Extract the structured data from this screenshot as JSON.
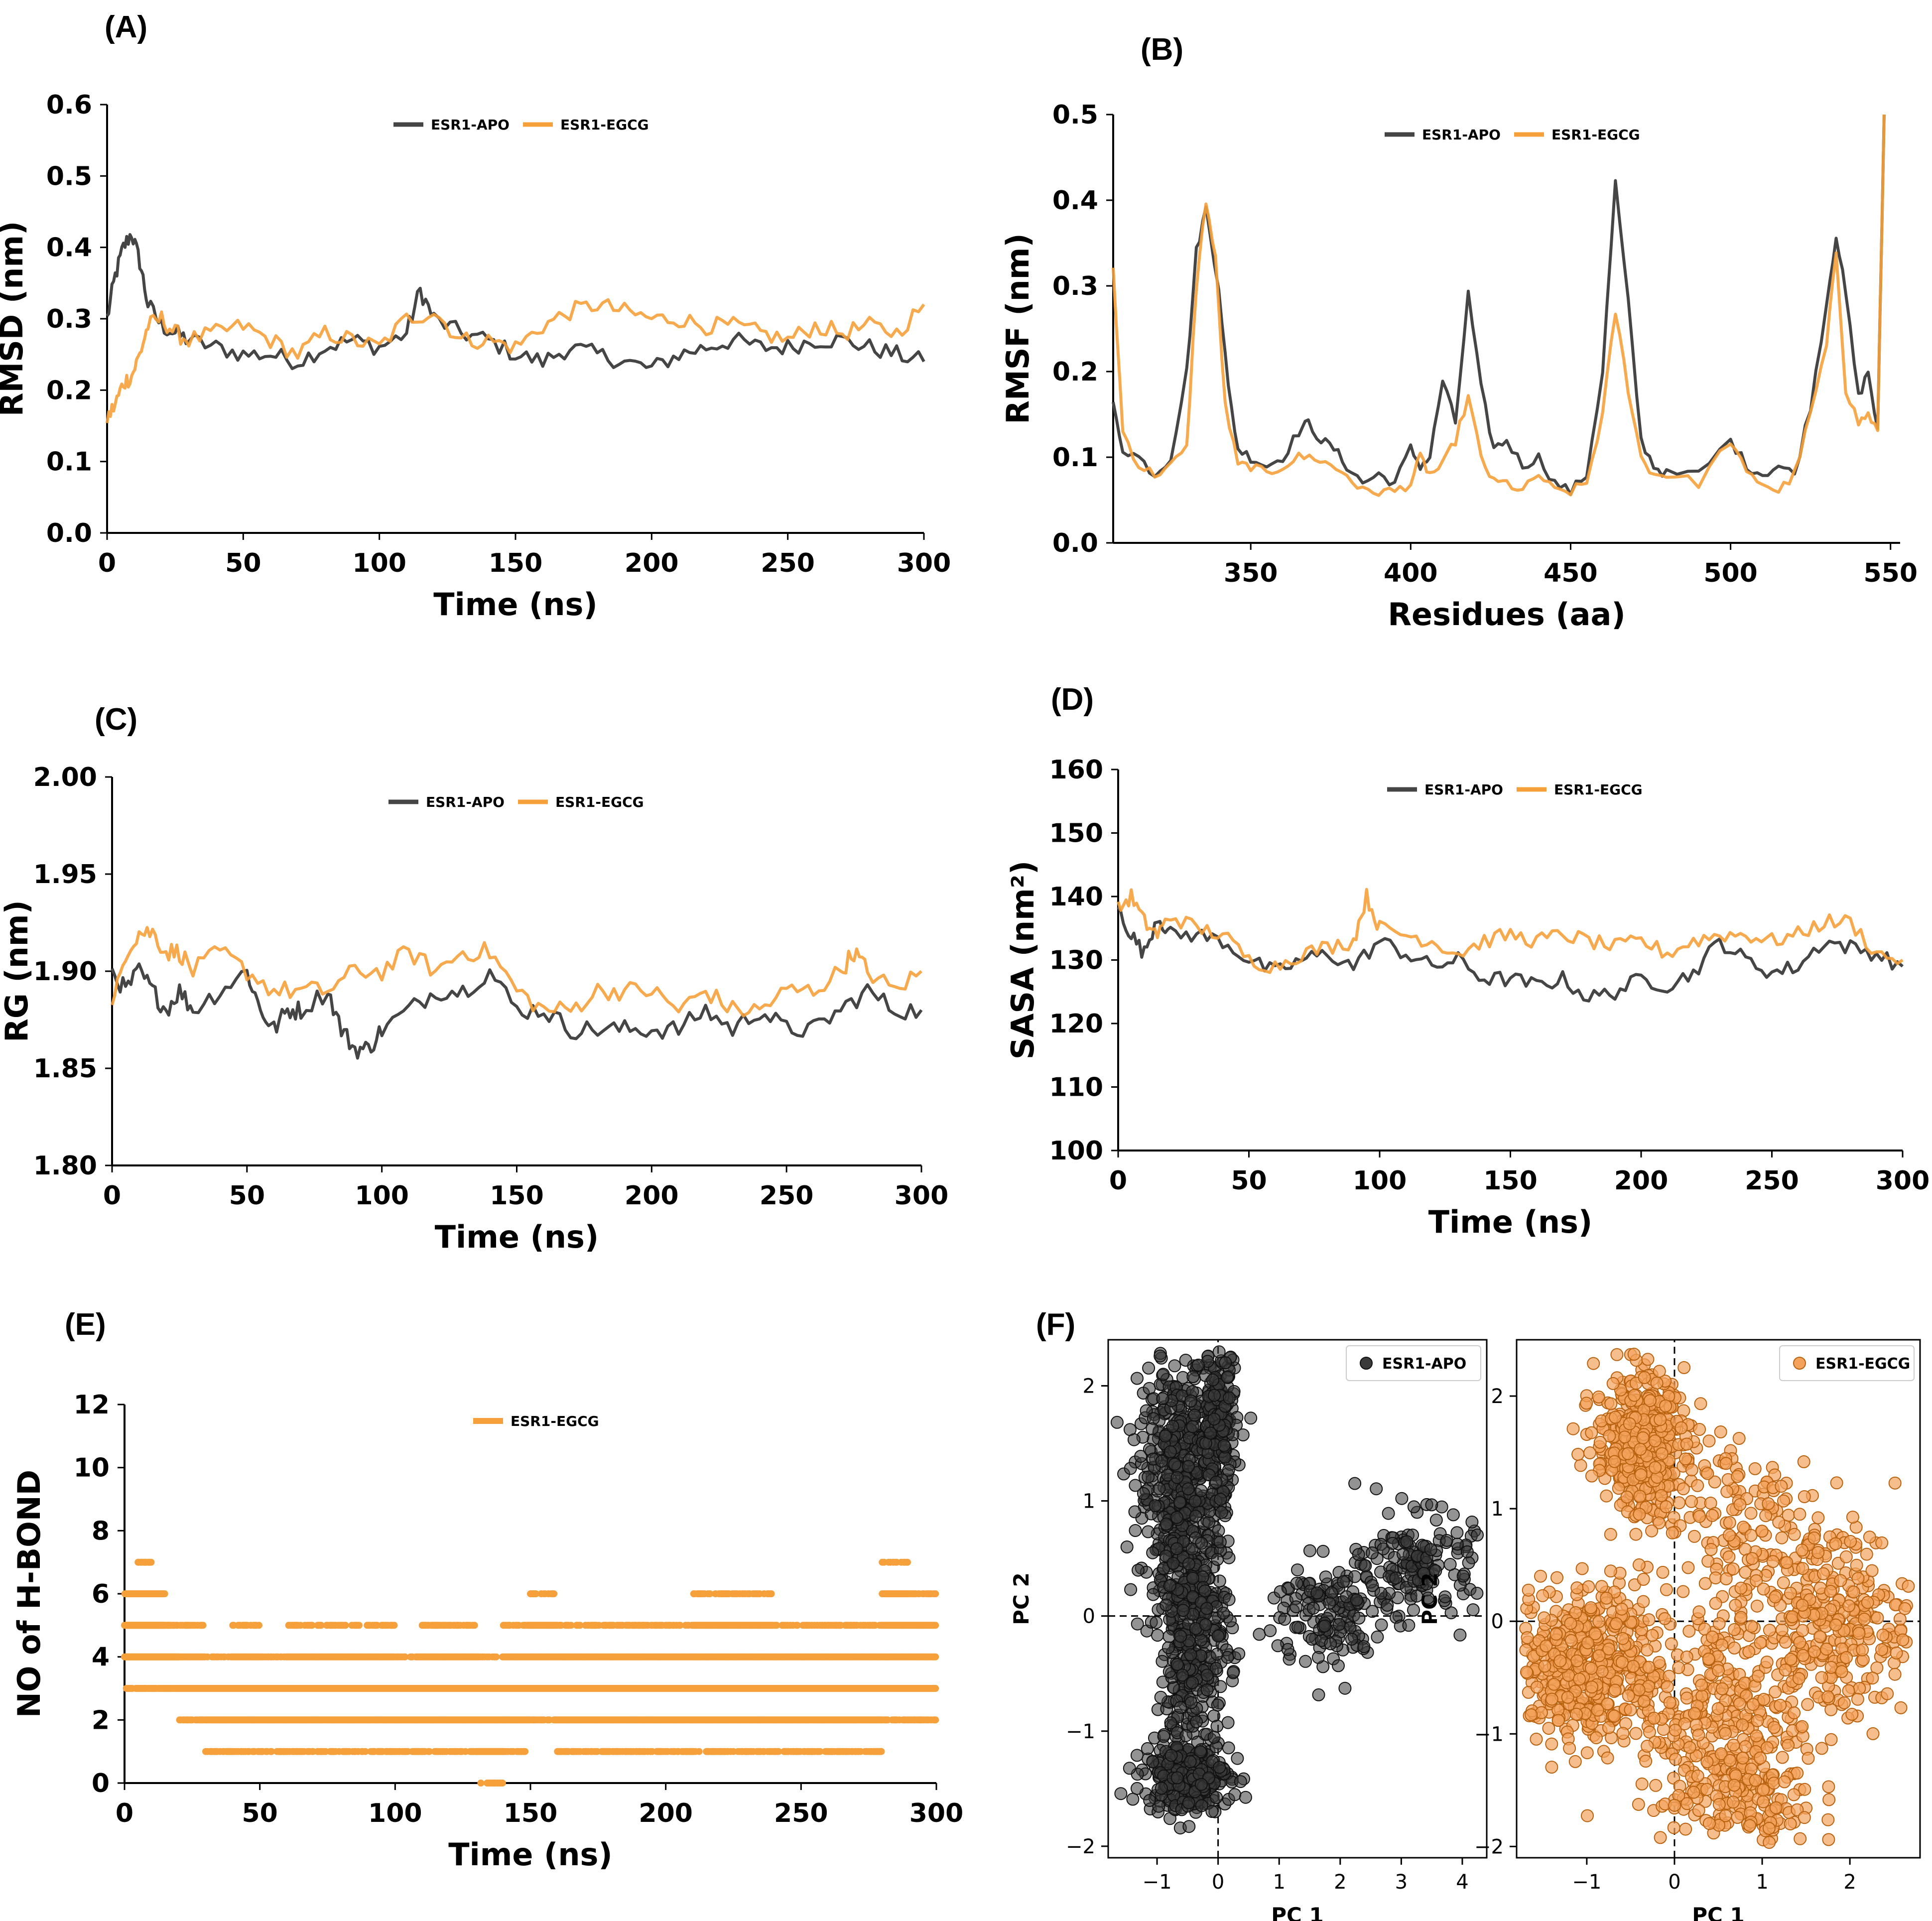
{
  "colors": {
    "apo": "#454545",
    "egcg": "#f5a03a",
    "egcg_dark": "#b8620f",
    "scatter_apo": "#3a3a3a",
    "scatter_egcg": "#f4a35c"
  },
  "chart_data": [
    {
      "id": "A",
      "panel_label": "(A)",
      "type": "line",
      "xlabel": "Time (ns)",
      "ylabel": "RMSD (nm)",
      "xlim": [
        0,
        300
      ],
      "ylim": [
        0.0,
        0.6
      ],
      "xticks": [
        "0",
        "50",
        "100",
        "150",
        "200",
        "250",
        "300"
      ],
      "yticks": [
        "0.0",
        "0.1",
        "0.2",
        "0.3",
        "0.4",
        "0.5",
        "0.6"
      ],
      "legend": "top-center",
      "series": [
        {
          "name": "ESR1-APO",
          "x": [
            0,
            3,
            6,
            9,
            12,
            15,
            20,
            25,
            30,
            40,
            50,
            60,
            70,
            80,
            90,
            100,
            110,
            115,
            120,
            130,
            140,
            150,
            160,
            170,
            180,
            190,
            200,
            210,
            220,
            230,
            240,
            250,
            260,
            270,
            280,
            290,
            300
          ],
          "y": [
            0.3,
            0.36,
            0.4,
            0.42,
            0.38,
            0.32,
            0.29,
            0.28,
            0.27,
            0.26,
            0.25,
            0.25,
            0.24,
            0.26,
            0.27,
            0.26,
            0.28,
            0.34,
            0.3,
            0.28,
            0.27,
            0.25,
            0.24,
            0.26,
            0.25,
            0.24,
            0.23,
            0.25,
            0.26,
            0.27,
            0.26,
            0.26,
            0.27,
            0.27,
            0.26,
            0.25,
            0.24
          ]
        },
        {
          "name": "ESR1-EGCG",
          "x": [
            0,
            3,
            6,
            9,
            12,
            15,
            20,
            25,
            30,
            40,
            50,
            60,
            70,
            80,
            90,
            100,
            110,
            120,
            130,
            140,
            150,
            160,
            170,
            180,
            190,
            200,
            210,
            220,
            230,
            240,
            250,
            260,
            270,
            280,
            290,
            300
          ],
          "y": [
            0.16,
            0.18,
            0.21,
            0.22,
            0.25,
            0.29,
            0.3,
            0.28,
            0.27,
            0.28,
            0.29,
            0.27,
            0.25,
            0.28,
            0.27,
            0.26,
            0.3,
            0.31,
            0.27,
            0.27,
            0.26,
            0.29,
            0.31,
            0.32,
            0.31,
            0.3,
            0.3,
            0.29,
            0.29,
            0.28,
            0.27,
            0.29,
            0.28,
            0.29,
            0.28,
            0.32
          ]
        }
      ]
    },
    {
      "id": "B",
      "panel_label": "(B)",
      "type": "line",
      "xlabel": "Residues (aa)",
      "ylabel": "RMSF (nm)",
      "xlim": [
        307,
        553
      ],
      "ylim": [
        0.0,
        0.5
      ],
      "xticks": [
        "350",
        "400",
        "450",
        "500",
        "550"
      ],
      "yticks": [
        "0.0",
        "0.1",
        "0.2",
        "0.3",
        "0.4",
        "0.5"
      ],
      "legend": "top-center",
      "series": [
        {
          "name": "ESR1-APO",
          "x": [
            307,
            310,
            315,
            320,
            325,
            330,
            333,
            336,
            340,
            343,
            346,
            350,
            355,
            360,
            365,
            368,
            372,
            376,
            380,
            385,
            390,
            395,
            400,
            403,
            406,
            410,
            414,
            418,
            422,
            426,
            430,
            435,
            440,
            445,
            450,
            455,
            460,
            464,
            468,
            472,
            476,
            480,
            490,
            500,
            505,
            510,
            515,
            520,
            525,
            530,
            533,
            536,
            540,
            543,
            546,
            548
          ],
          "y": [
            0.16,
            0.11,
            0.1,
            0.08,
            0.1,
            0.2,
            0.34,
            0.39,
            0.3,
            0.18,
            0.11,
            0.1,
            0.09,
            0.1,
            0.13,
            0.14,
            0.12,
            0.11,
            0.09,
            0.07,
            0.08,
            0.07,
            0.11,
            0.09,
            0.1,
            0.19,
            0.14,
            0.29,
            0.18,
            0.11,
            0.12,
            0.09,
            0.1,
            0.07,
            0.06,
            0.08,
            0.2,
            0.42,
            0.28,
            0.12,
            0.09,
            0.08,
            0.08,
            0.12,
            0.09,
            0.08,
            0.09,
            0.08,
            0.16,
            0.28,
            0.36,
            0.29,
            0.17,
            0.2,
            0.13,
            0.5
          ]
        },
        {
          "name": "ESR1-EGCG",
          "x": [
            307,
            310,
            315,
            320,
            325,
            330,
            333,
            336,
            339,
            342,
            346,
            350,
            355,
            360,
            365,
            370,
            375,
            380,
            385,
            390,
            395,
            400,
            403,
            406,
            410,
            414,
            418,
            422,
            426,
            430,
            435,
            440,
            445,
            450,
            455,
            460,
            464,
            468,
            472,
            476,
            480,
            490,
            500,
            505,
            510,
            515,
            520,
            525,
            530,
            533,
            536,
            540,
            543,
            546,
            548
          ],
          "y": [
            0.32,
            0.13,
            0.09,
            0.08,
            0.09,
            0.11,
            0.3,
            0.4,
            0.33,
            0.16,
            0.09,
            0.09,
            0.08,
            0.09,
            0.1,
            0.1,
            0.09,
            0.08,
            0.06,
            0.06,
            0.06,
            0.07,
            0.1,
            0.08,
            0.09,
            0.12,
            0.17,
            0.1,
            0.07,
            0.07,
            0.06,
            0.08,
            0.06,
            0.06,
            0.07,
            0.15,
            0.27,
            0.18,
            0.1,
            0.08,
            0.08,
            0.07,
            0.12,
            0.08,
            0.07,
            0.06,
            0.08,
            0.15,
            0.23,
            0.34,
            0.18,
            0.14,
            0.15,
            0.13,
            0.5
          ]
        }
      ]
    },
    {
      "id": "C",
      "panel_label": "(C)",
      "type": "line",
      "xlabel": "Time (ns)",
      "ylabel": "RG (nm)",
      "xlim": [
        0,
        300
      ],
      "ylim": [
        1.8,
        2.0
      ],
      "xticks": [
        "0",
        "50",
        "100",
        "150",
        "200",
        "250",
        "300"
      ],
      "yticks": [
        "1.80",
        "1.85",
        "1.90",
        "1.95",
        "2.00"
      ],
      "legend": "top-center",
      "series": [
        {
          "name": "ESR1-APO",
          "x": [
            0,
            5,
            10,
            15,
            20,
            25,
            30,
            40,
            50,
            55,
            60,
            65,
            70,
            80,
            85,
            90,
            95,
            100,
            110,
            120,
            130,
            140,
            150,
            160,
            170,
            180,
            190,
            200,
            210,
            220,
            230,
            240,
            250,
            260,
            270,
            280,
            290,
            300
          ],
          "y": [
            1.9,
            1.89,
            1.9,
            1.89,
            1.88,
            1.89,
            1.88,
            1.89,
            1.9,
            1.88,
            1.87,
            1.88,
            1.88,
            1.89,
            1.87,
            1.86,
            1.86,
            1.87,
            1.88,
            1.89,
            1.89,
            1.9,
            1.88,
            1.88,
            1.87,
            1.87,
            1.87,
            1.87,
            1.87,
            1.88,
            1.87,
            1.88,
            1.87,
            1.87,
            1.88,
            1.89,
            1.88,
            1.88
          ]
        },
        {
          "name": "ESR1-EGCG",
          "x": [
            0,
            5,
            10,
            15,
            20,
            25,
            30,
            40,
            50,
            60,
            70,
            80,
            90,
            100,
            110,
            120,
            130,
            140,
            150,
            160,
            170,
            180,
            190,
            200,
            210,
            220,
            230,
            240,
            250,
            260,
            270,
            275,
            280,
            290,
            300
          ],
          "y": [
            1.88,
            1.91,
            1.92,
            1.92,
            1.91,
            1.91,
            1.9,
            1.91,
            1.9,
            1.89,
            1.89,
            1.89,
            1.9,
            1.9,
            1.91,
            1.9,
            1.91,
            1.91,
            1.89,
            1.88,
            1.88,
            1.89,
            1.89,
            1.89,
            1.88,
            1.89,
            1.88,
            1.88,
            1.89,
            1.89,
            1.9,
            1.91,
            1.9,
            1.89,
            1.9
          ]
        }
      ]
    },
    {
      "id": "D",
      "panel_label": "(D)",
      "type": "line",
      "xlabel": "Time (ns)",
      "ylabel": "SASA (nm²)",
      "xlim": [
        0,
        300
      ],
      "ylim": [
        100,
        160
      ],
      "xticks": [
        "0",
        "50",
        "100",
        "150",
        "200",
        "250",
        "300"
      ],
      "yticks": [
        "100",
        "110",
        "120",
        "130",
        "140",
        "150",
        "160"
      ],
      "legend": "top-center",
      "series": [
        {
          "name": "ESR1-APO",
          "x": [
            0,
            5,
            10,
            15,
            20,
            30,
            40,
            50,
            60,
            70,
            80,
            90,
            100,
            110,
            120,
            130,
            140,
            150,
            160,
            170,
            180,
            190,
            200,
            210,
            220,
            230,
            240,
            250,
            260,
            270,
            280,
            290,
            300
          ],
          "y": [
            138,
            134,
            131,
            137,
            134,
            134,
            133,
            130,
            128,
            130,
            131,
            129,
            133,
            131,
            129,
            130,
            127,
            127,
            126,
            127,
            124,
            125,
            127,
            126,
            128,
            133,
            130,
            128,
            129,
            133,
            132,
            131,
            129
          ]
        },
        {
          "name": "ESR1-EGCG",
          "x": [
            0,
            5,
            10,
            15,
            20,
            30,
            40,
            50,
            60,
            70,
            80,
            90,
            95,
            100,
            110,
            120,
            130,
            140,
            150,
            160,
            170,
            180,
            190,
            200,
            210,
            220,
            230,
            240,
            250,
            260,
            270,
            280,
            290,
            300
          ],
          "y": [
            138,
            140,
            136,
            134,
            137,
            135,
            134,
            130,
            129,
            131,
            132,
            133,
            140,
            135,
            134,
            133,
            131,
            133,
            134,
            133,
            134,
            133,
            132,
            133,
            131,
            133,
            134,
            134,
            133,
            134,
            136,
            136,
            131,
            130
          ]
        }
      ]
    },
    {
      "id": "E",
      "panel_label": "(E)",
      "type": "scatter",
      "xlabel": "Time (ns)",
      "ylabel": "NO of H-BOND",
      "xlim": [
        0,
        300
      ],
      "ylim": [
        0,
        12
      ],
      "xticks": [
        "0",
        "50",
        "100",
        "150",
        "200",
        "250",
        "300"
      ],
      "yticks": [
        "0",
        "2",
        "4",
        "6",
        "8",
        "10",
        "12"
      ],
      "legend": "top-center",
      "series": [
        {
          "name": "ESR1-EGCG",
          "note_range": "values fluctuate between min and max over time",
          "x": [
            0,
            5,
            10,
            15,
            20,
            30,
            40,
            50,
            60,
            70,
            80,
            90,
            100,
            110,
            120,
            130,
            140,
            150,
            160,
            170,
            180,
            190,
            200,
            210,
            220,
            230,
            240,
            250,
            260,
            270,
            280,
            290,
            300
          ],
          "min": [
            3,
            3,
            3,
            3,
            2,
            1,
            1,
            1,
            1,
            1,
            1,
            1,
            1,
            1,
            1,
            0,
            1,
            2,
            1,
            1,
            1,
            1,
            1,
            1,
            1,
            1,
            1,
            1,
            1,
            1,
            2,
            2,
            2
          ],
          "max": [
            6,
            7,
            6,
            5,
            5,
            4,
            5,
            4,
            5,
            5,
            5,
            5,
            4,
            5,
            5,
            4,
            5,
            6,
            5,
            5,
            5,
            5,
            5,
            6,
            6,
            6,
            5,
            5,
            5,
            5,
            7,
            6,
            5
          ]
        }
      ]
    },
    {
      "id": "F1",
      "panel_label": "(F)",
      "type": "scatter",
      "xlabel": "PC 1",
      "ylabel": "PC 2",
      "xlim": [
        -1.8,
        4.4
      ],
      "ylim": [
        -2.1,
        2.4
      ],
      "xticks": [
        "−1",
        "0",
        "1",
        "2",
        "3",
        "4"
      ],
      "yticks": [
        "−2",
        "−1",
        "0",
        "1",
        "2"
      ],
      "legend": "top-right",
      "series": [
        {
          "name": "ESR1-APO",
          "clusters": [
            {
              "cx": -0.6,
              "cy": 1.2,
              "sx": 0.35,
              "sy": 0.55,
              "n": 500
            },
            {
              "cx": 0.0,
              "cy": 1.6,
              "sx": 0.15,
              "sy": 0.35,
              "n": 200
            },
            {
              "cx": -0.4,
              "cy": -0.2,
              "sx": 0.3,
              "sy": 0.5,
              "n": 350
            },
            {
              "cx": -0.5,
              "cy": -1.4,
              "sx": 0.35,
              "sy": 0.15,
              "n": 300
            },
            {
              "cx": 1.8,
              "cy": 0.0,
              "sx": 0.45,
              "sy": 0.25,
              "n": 140
            },
            {
              "cx": 3.3,
              "cy": 0.45,
              "sx": 0.45,
              "sy": 0.22,
              "n": 160
            }
          ]
        }
      ]
    },
    {
      "id": "F2",
      "panel_label": "",
      "type": "scatter",
      "xlabel": "PC 1",
      "ylabel": "PC 2",
      "xlim": [
        -1.8,
        2.8
      ],
      "ylim": [
        -2.1,
        2.5
      ],
      "xticks": [
        "−1",
        "0",
        "1",
        "2"
      ],
      "yticks": [
        "−2",
        "−1",
        "0",
        "1",
        "2"
      ],
      "legend": "top-right",
      "series": [
        {
          "name": "ESR1-EGCG",
          "clusters": [
            {
              "cx": -0.4,
              "cy": 1.6,
              "sx": 0.25,
              "sy": 0.3,
              "n": 450
            },
            {
              "cx": -1.0,
              "cy": -0.4,
              "sx": 0.45,
              "sy": 0.35,
              "n": 500
            },
            {
              "cx": 0.5,
              "cy": -0.9,
              "sx": 0.45,
              "sy": 0.55,
              "n": 300
            },
            {
              "cx": 1.8,
              "cy": 0.0,
              "sx": 0.45,
              "sy": 0.45,
              "n": 300
            },
            {
              "cx": 0.6,
              "cy": 0.9,
              "sx": 0.5,
              "sy": 0.45,
              "n": 150
            },
            {
              "cx": 0.8,
              "cy": -1.6,
              "sx": 0.4,
              "sy": 0.2,
              "n": 120
            }
          ]
        }
      ]
    }
  ]
}
